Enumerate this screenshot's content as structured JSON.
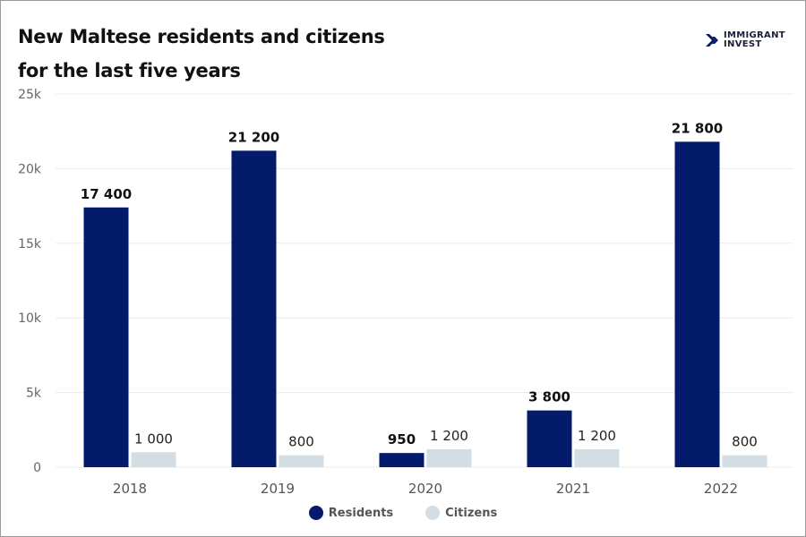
{
  "title_line1": "New Maltese residents and citizens",
  "title_line2": "for the last five years",
  "logo": {
    "line1": "IMMIGRANT",
    "line2": "INVEST"
  },
  "chart_data": {
    "type": "bar",
    "categories": [
      "2018",
      "2019",
      "2020",
      "2021",
      "2022"
    ],
    "series": [
      {
        "name": "Residents",
        "values": [
          17400,
          21200,
          950,
          3800,
          21800
        ],
        "labels": [
          "17 400",
          "21 200",
          "950",
          "3 800",
          "21 800"
        ],
        "color": "#041b6b"
      },
      {
        "name": "Citizens",
        "values": [
          1000,
          800,
          1200,
          1200,
          800
        ],
        "labels": [
          "1 000",
          "800",
          "1 200",
          "1 200",
          "800"
        ],
        "color": "#d3dde4"
      }
    ],
    "ylim": [
      0,
      25000
    ],
    "yticks": [
      0,
      5000,
      10000,
      15000,
      20000,
      25000
    ],
    "ytick_labels": [
      "0",
      "5k",
      "10k",
      "15k",
      "20k",
      "25k"
    ],
    "grid": true,
    "legend_position": "bottom"
  }
}
